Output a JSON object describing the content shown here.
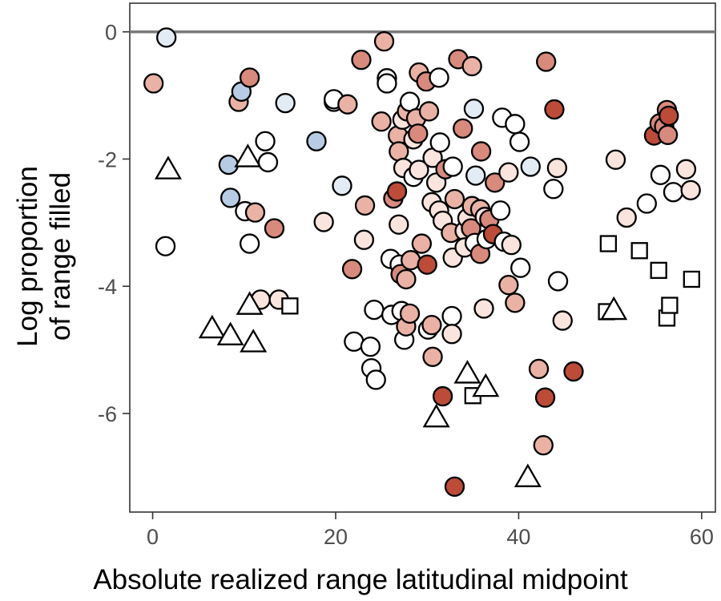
{
  "chart_data": {
    "type": "scatter",
    "xlabel": "Absolute realized range latitudinal midpoint",
    "ylabel_lines": [
      "Log proportion",
      "of range filled"
    ],
    "xlim": [
      -2.5,
      61.5
    ],
    "ylim": [
      -7.55,
      0.45
    ],
    "x_ticks": [
      0,
      20,
      40,
      60
    ],
    "y_ticks": [
      0,
      -2,
      -4,
      -6
    ],
    "reference_line_y": 0,
    "grid": false,
    "point_colors": {
      "white": "#ffffff",
      "blue_light": "#e3ecf5",
      "blue_mid": "#b7cbe4",
      "red_lightest": "#f9e4de",
      "red_light": "#e9b2a5",
      "red_mid": "#d88a7c",
      "red_dark": "#bc4b38"
    },
    "circles": [
      {
        "x": 0.1,
        "y": -0.81,
        "color": "red_light"
      },
      {
        "x": 1.5,
        "y": -0.09,
        "color": "blue_light"
      },
      {
        "x": 1.4,
        "y": -3.37,
        "color": "white"
      },
      {
        "x": 8.3,
        "y": -2.09,
        "color": "blue_mid"
      },
      {
        "x": 8.5,
        "y": -2.61,
        "color": "blue_mid"
      },
      {
        "x": 9.4,
        "y": -1.1,
        "color": "red_light"
      },
      {
        "x": 9.7,
        "y": -0.94,
        "color": "blue_mid"
      },
      {
        "x": 10.6,
        "y": -0.72,
        "color": "red_mid"
      },
      {
        "x": 10.1,
        "y": -2.82,
        "color": "white"
      },
      {
        "x": 11.2,
        "y": -2.84,
        "color": "red_light"
      },
      {
        "x": 10.6,
        "y": -3.33,
        "color": "white"
      },
      {
        "x": 12.3,
        "y": -1.72,
        "color": "white"
      },
      {
        "x": 12.6,
        "y": -2.05,
        "color": "white"
      },
      {
        "x": 11.8,
        "y": -4.21,
        "color": "red_lightest"
      },
      {
        "x": 13.3,
        "y": -3.09,
        "color": "red_mid"
      },
      {
        "x": 13.8,
        "y": -4.21,
        "color": "red_lightest"
      },
      {
        "x": 14.5,
        "y": -1.12,
        "color": "blue_light"
      },
      {
        "x": 17.9,
        "y": -1.72,
        "color": "blue_mid"
      },
      {
        "x": 18.7,
        "y": -2.99,
        "color": "red_lightest"
      },
      {
        "x": 19.8,
        "y": -1.1,
        "color": "blue_light"
      },
      {
        "x": 19.8,
        "y": -1.06,
        "color": "white"
      },
      {
        "x": 20.7,
        "y": -2.42,
        "color": "blue_light"
      },
      {
        "x": 21.3,
        "y": -1.14,
        "color": "red_light"
      },
      {
        "x": 21.8,
        "y": -3.73,
        "color": "red_mid"
      },
      {
        "x": 22.0,
        "y": -4.87,
        "color": "white"
      },
      {
        "x": 22.8,
        "y": -0.44,
        "color": "red_mid"
      },
      {
        "x": 23.1,
        "y": -3.27,
        "color": "red_lightest"
      },
      {
        "x": 23.2,
        "y": -2.73,
        "color": "red_light"
      },
      {
        "x": 23.8,
        "y": -4.95,
        "color": "white"
      },
      {
        "x": 23.9,
        "y": -5.29,
        "color": "white"
      },
      {
        "x": 24.2,
        "y": -4.37,
        "color": "white"
      },
      {
        "x": 24.4,
        "y": -5.47,
        "color": "white"
      },
      {
        "x": 25.0,
        "y": -1.41,
        "color": "red_light"
      },
      {
        "x": 25.3,
        "y": -0.15,
        "color": "red_light"
      },
      {
        "x": 25.6,
        "y": -0.73,
        "color": "white"
      },
      {
        "x": 25.6,
        "y": -0.81,
        "color": "white"
      },
      {
        "x": 26.0,
        "y": -3.57,
        "color": "white"
      },
      {
        "x": 26.1,
        "y": -4.45,
        "color": "white"
      },
      {
        "x": 26.3,
        "y": -2.62,
        "color": "red_mid"
      },
      {
        "x": 26.7,
        "y": -2.51,
        "color": "red_dark"
      },
      {
        "x": 26.8,
        "y": -1.63,
        "color": "red_light"
      },
      {
        "x": 26.9,
        "y": -1.88,
        "color": "red_light"
      },
      {
        "x": 26.9,
        "y": -3.03,
        "color": "red_lightest"
      },
      {
        "x": 27.0,
        "y": -3.66,
        "color": "white"
      },
      {
        "x": 27.1,
        "y": -3.81,
        "color": "red_mid"
      },
      {
        "x": 27.2,
        "y": -4.39,
        "color": "white"
      },
      {
        "x": 27.3,
        "y": -1.38,
        "color": "red_lightest"
      },
      {
        "x": 27.4,
        "y": -2.14,
        "color": "red_lightest"
      },
      {
        "x": 27.5,
        "y": -4.84,
        "color": "white"
      },
      {
        "x": 27.7,
        "y": -4.63,
        "color": "red_light"
      },
      {
        "x": 27.7,
        "y": -3.89,
        "color": "red_light"
      },
      {
        "x": 27.8,
        "y": -1.25,
        "color": "red_light"
      },
      {
        "x": 28.1,
        "y": -1.1,
        "color": "white"
      },
      {
        "x": 28.1,
        "y": -4.43,
        "color": "red_light"
      },
      {
        "x": 28.2,
        "y": -3.59,
        "color": "red_light"
      },
      {
        "x": 28.5,
        "y": -1.69,
        "color": "red_lightest"
      },
      {
        "x": 28.5,
        "y": -2.28,
        "color": "white"
      },
      {
        "x": 28.8,
        "y": -1.36,
        "color": "red_light"
      },
      {
        "x": 29.0,
        "y": -1.6,
        "color": "red_mid"
      },
      {
        "x": 29.1,
        "y": -0.64,
        "color": "red_light"
      },
      {
        "x": 29.1,
        "y": -2.17,
        "color": "red_lightest"
      },
      {
        "x": 29.4,
        "y": -3.33,
        "color": "red_light"
      },
      {
        "x": 29.9,
        "y": -0.78,
        "color": "red_mid"
      },
      {
        "x": 30.0,
        "y": -3.66,
        "color": "red_dark"
      },
      {
        "x": 30.1,
        "y": -4.68,
        "color": "white"
      },
      {
        "x": 30.2,
        "y": -1.25,
        "color": "red_light"
      },
      {
        "x": 30.5,
        "y": -2.68,
        "color": "red_lightest"
      },
      {
        "x": 30.5,
        "y": -4.61,
        "color": "red_light"
      },
      {
        "x": 30.6,
        "y": -5.11,
        "color": "red_light"
      },
      {
        "x": 30.6,
        "y": -1.98,
        "color": "red_lightest"
      },
      {
        "x": 31.0,
        "y": -2.37,
        "color": "red_lightest"
      },
      {
        "x": 31.3,
        "y": -2.81,
        "color": "red_lightest"
      },
      {
        "x": 31.3,
        "y": -0.72,
        "color": "white"
      },
      {
        "x": 31.4,
        "y": -1.74,
        "color": "white"
      },
      {
        "x": 31.7,
        "y": -2.97,
        "color": "red_lightest"
      },
      {
        "x": 31.7,
        "y": -5.73,
        "color": "red_dark"
      },
      {
        "x": 32.0,
        "y": -2.16,
        "color": "red_mid"
      },
      {
        "x": 32.6,
        "y": -3.16,
        "color": "red_light"
      },
      {
        "x": 32.7,
        "y": -4.47,
        "color": "white"
      },
      {
        "x": 32.7,
        "y": -4.75,
        "color": "red_lightest"
      },
      {
        "x": 32.8,
        "y": -2.12,
        "color": "white"
      },
      {
        "x": 32.8,
        "y": -3.55,
        "color": "red_lightest"
      },
      {
        "x": 33.0,
        "y": -7.15,
        "color": "red_dark"
      },
      {
        "x": 33.0,
        "y": -2.63,
        "color": "red_light"
      },
      {
        "x": 33.4,
        "y": -0.43,
        "color": "red_mid"
      },
      {
        "x": 33.9,
        "y": -1.52,
        "color": "red_mid"
      },
      {
        "x": 34.1,
        "y": -3.13,
        "color": "red_lightest"
      },
      {
        "x": 34.1,
        "y": -3.39,
        "color": "red_lightest"
      },
      {
        "x": 34.4,
        "y": -2.93,
        "color": "red_lightest"
      },
      {
        "x": 34.8,
        "y": -3.09,
        "color": "red_mid"
      },
      {
        "x": 34.9,
        "y": -2.74,
        "color": "red_light"
      },
      {
        "x": 34.9,
        "y": -0.54,
        "color": "red_light"
      },
      {
        "x": 35.1,
        "y": -1.21,
        "color": "blue_light"
      },
      {
        "x": 35.2,
        "y": -3.32,
        "color": "white"
      },
      {
        "x": 35.3,
        "y": -2.26,
        "color": "blue_light"
      },
      {
        "x": 35.8,
        "y": -2.79,
        "color": "red_light"
      },
      {
        "x": 35.8,
        "y": -3.49,
        "color": "red_mid"
      },
      {
        "x": 35.9,
        "y": -1.88,
        "color": "red_mid"
      },
      {
        "x": 36.2,
        "y": -4.35,
        "color": "red_lightest"
      },
      {
        "x": 36.3,
        "y": -2.91,
        "color": "red_lightest"
      },
      {
        "x": 36.5,
        "y": -3.26,
        "color": "white"
      },
      {
        "x": 36.8,
        "y": -2.95,
        "color": "red_mid"
      },
      {
        "x": 37.2,
        "y": -3.18,
        "color": "red_dark"
      },
      {
        "x": 37.4,
        "y": -2.37,
        "color": "red_mid"
      },
      {
        "x": 38.0,
        "y": -2.81,
        "color": "white"
      },
      {
        "x": 38.2,
        "y": -1.35,
        "color": "white"
      },
      {
        "x": 38.4,
        "y": -3.3,
        "color": "white"
      },
      {
        "x": 38.9,
        "y": -2.21,
        "color": "red_lightest"
      },
      {
        "x": 38.9,
        "y": -3.98,
        "color": "red_light"
      },
      {
        "x": 39.2,
        "y": -3.35,
        "color": "red_lightest"
      },
      {
        "x": 39.6,
        "y": -1.45,
        "color": "white"
      },
      {
        "x": 39.6,
        "y": -4.26,
        "color": "red_light"
      },
      {
        "x": 40.1,
        "y": -1.73,
        "color": "white"
      },
      {
        "x": 40.2,
        "y": -3.71,
        "color": "white"
      },
      {
        "x": 41.3,
        "y": -2.12,
        "color": "blue_light"
      },
      {
        "x": 42.2,
        "y": -5.3,
        "color": "red_light"
      },
      {
        "x": 42.7,
        "y": -6.5,
        "color": "red_light"
      },
      {
        "x": 42.9,
        "y": -5.75,
        "color": "red_dark"
      },
      {
        "x": 43.0,
        "y": -0.47,
        "color": "red_mid"
      },
      {
        "x": 43.8,
        "y": -2.47,
        "color": "white"
      },
      {
        "x": 43.9,
        "y": -1.22,
        "color": "red_dark"
      },
      {
        "x": 44.2,
        "y": -2.14,
        "color": "red_lightest"
      },
      {
        "x": 44.3,
        "y": -3.92,
        "color": "white"
      },
      {
        "x": 44.8,
        "y": -4.54,
        "color": "red_lightest"
      },
      {
        "x": 46.0,
        "y": -5.34,
        "color": "red_dark"
      },
      {
        "x": 50.6,
        "y": -2.01,
        "color": "red_lightest"
      },
      {
        "x": 51.8,
        "y": -2.92,
        "color": "red_lightest"
      },
      {
        "x": 54.0,
        "y": -2.7,
        "color": "white"
      },
      {
        "x": 54.8,
        "y": -1.63,
        "color": "red_dark"
      },
      {
        "x": 55.4,
        "y": -1.44,
        "color": "red_mid"
      },
      {
        "x": 55.5,
        "y": -2.25,
        "color": "white"
      },
      {
        "x": 55.9,
        "y": -1.49,
        "color": "red_mid"
      },
      {
        "x": 56.2,
        "y": -1.23,
        "color": "red_mid"
      },
      {
        "x": 56.3,
        "y": -1.62,
        "color": "red_mid"
      },
      {
        "x": 56.4,
        "y": -1.32,
        "color": "red_dark"
      },
      {
        "x": 56.9,
        "y": -2.52,
        "color": "white"
      },
      {
        "x": 58.3,
        "y": -2.16,
        "color": "red_lightest"
      },
      {
        "x": 58.8,
        "y": -2.49,
        "color": "red_lightest"
      }
    ],
    "triangles": [
      {
        "x": 1.7,
        "y": -2.18
      },
      {
        "x": 6.5,
        "y": -4.68
      },
      {
        "x": 8.5,
        "y": -4.79
      },
      {
        "x": 10.4,
        "y": -1.99
      },
      {
        "x": 10.6,
        "y": -4.31
      },
      {
        "x": 11.0,
        "y": -4.9
      },
      {
        "x": 31.0,
        "y": -6.08
      },
      {
        "x": 34.4,
        "y": -5.39
      },
      {
        "x": 36.4,
        "y": -5.6
      },
      {
        "x": 41.0,
        "y": -7.02
      },
      {
        "x": 50.4,
        "y": -4.39
      }
    ],
    "squares": [
      {
        "x": 15.0,
        "y": -4.31
      },
      {
        "x": 35.0,
        "y": -5.72
      },
      {
        "x": 49.6,
        "y": -4.4
      },
      {
        "x": 49.8,
        "y": -3.33
      },
      {
        "x": 53.2,
        "y": -3.44
      },
      {
        "x": 55.3,
        "y": -3.75
      },
      {
        "x": 56.2,
        "y": -4.5
      },
      {
        "x": 56.5,
        "y": -4.3
      },
      {
        "x": 58.9,
        "y": -3.89
      }
    ]
  }
}
